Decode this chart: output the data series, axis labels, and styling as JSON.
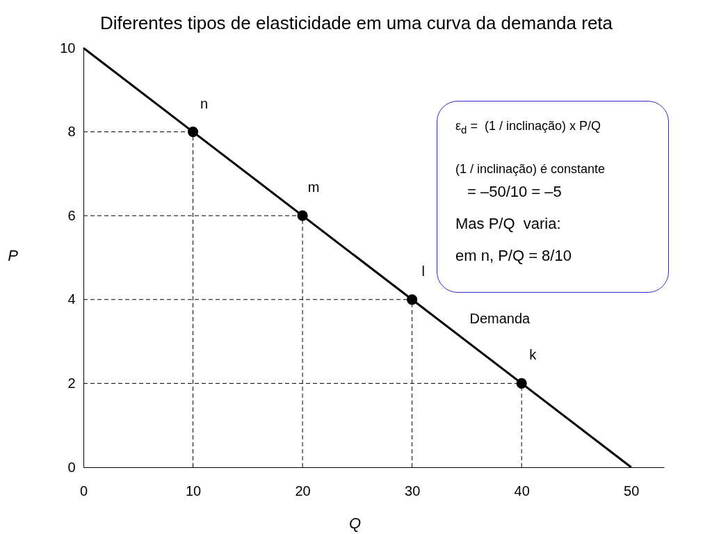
{
  "chart_data": {
    "type": "line",
    "title": "Diferentes tipos de elasticidade em uma curva da demanda reta",
    "xlabel": "Q",
    "ylabel": "P",
    "series": [
      {
        "name": "Demanda",
        "color": "#000000",
        "x": [
          0,
          50
        ],
        "values": [
          10,
          0
        ]
      },
      {
        "type": "scatter",
        "color": "#000000",
        "marker": "circle",
        "x": [
          10,
          20,
          30,
          40
        ],
        "values": [
          8,
          6,
          4,
          2
        ]
      }
    ],
    "xlim": [
      0,
      53
    ],
    "ylim": [
      0,
      10
    ],
    "xticks": [
      0,
      10,
      20,
      30,
      40,
      50
    ],
    "yticks": [
      0,
      2,
      4,
      6,
      8,
      10
    ],
    "ref_lines": [
      {
        "axis": "x",
        "value": 10,
        "color": "#000000",
        "line_style": "dashed"
      },
      {
        "axis": "x",
        "value": 20,
        "color": "#000000",
        "line_style": "dashed"
      },
      {
        "axis": "x",
        "value": 30,
        "color": "#000000",
        "line_style": "dashed"
      },
      {
        "axis": "x",
        "value": 40,
        "color": "#000000",
        "line_style": "dashed"
      },
      {
        "axis": "y",
        "value": 8,
        "color": "#000000",
        "line_style": "dashed"
      },
      {
        "axis": "y",
        "value": 6,
        "color": "#000000",
        "line_style": "dashed"
      },
      {
        "axis": "y",
        "value": 4,
        "color": "#000000",
        "line_style": "dashed"
      },
      {
        "axis": "y",
        "value": 2,
        "color": "#000000",
        "line_style": "dashed"
      }
    ],
    "annotations": [
      {
        "text": "n",
        "x": 10,
        "y": 8
      },
      {
        "text": "m",
        "x": 20,
        "y": 6
      },
      {
        "text": "l",
        "x": 30,
        "y": 4
      },
      {
        "text": "k",
        "x": 40,
        "y": 2
      },
      "ε$_{d}$ =  (1 / inclinação) x P/Q",
      "(1 / inclinação) é constante",
      "= –50/10 = –5",
      "Mas P/Q  varia:",
      "em n, P/Q = 8/10"
    ]
  }
}
